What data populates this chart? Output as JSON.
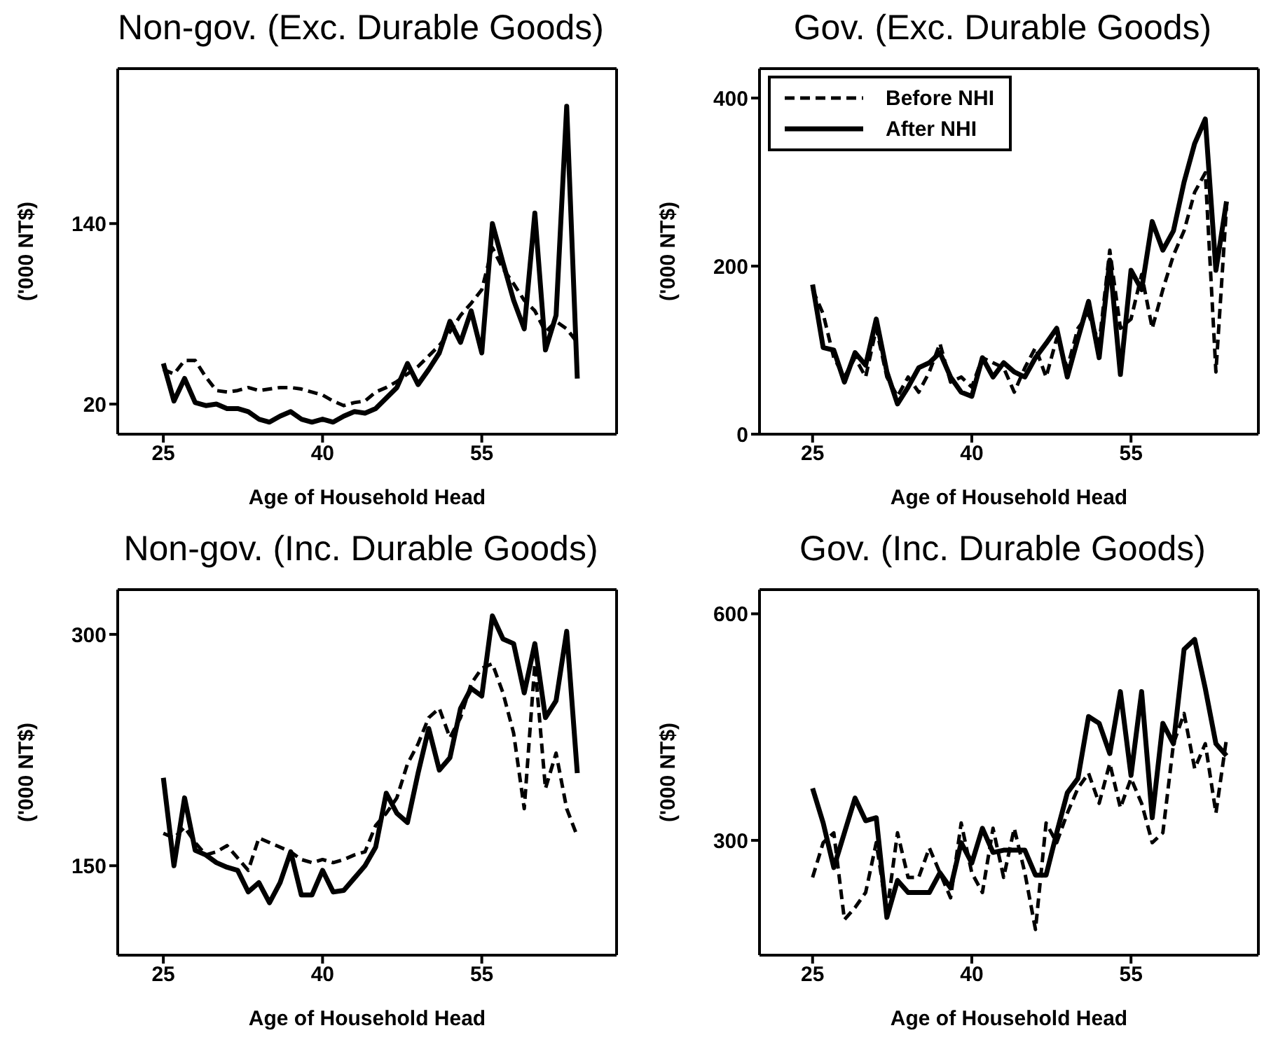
{
  "chart_data": [
    {
      "type": "line",
      "title": "Non-gov. (Exc. Durable Goods)",
      "xlabel": "Age of Household Head",
      "ylabel": "('000 NT$)",
      "x": [
        25,
        26,
        27,
        28,
        29,
        30,
        31,
        32,
        33,
        34,
        35,
        36,
        37,
        38,
        39,
        40,
        41,
        42,
        43,
        44,
        45,
        46,
        47,
        48,
        49,
        50,
        51,
        52,
        53,
        54,
        55,
        56,
        57,
        58,
        59,
        60,
        61,
        62,
        63,
        64
      ],
      "xlim": [
        20.7,
        67.7
      ],
      "xticks": [
        25,
        40,
        55
      ],
      "ylim": [
        0,
        243
      ],
      "yticks": [
        20,
        140
      ],
      "marker": "none",
      "legend": false,
      "series": [
        {
          "color": "#000000",
          "line_style": "dashed",
          "values": [
            43,
            40,
            49,
            49,
            38,
            29,
            28,
            29,
            31,
            29,
            30,
            31,
            31,
            30,
            28,
            26,
            22,
            19,
            21,
            22,
            28,
            31,
            35,
            40,
            45,
            52,
            59,
            68,
            79,
            87,
            96,
            124,
            110,
            100,
            89,
            82,
            68,
            75,
            70,
            61
          ]
        },
        {
          "color": "#000000",
          "line_style": "solid",
          "values": [
            47,
            22,
            37,
            21,
            19,
            20,
            17,
            17,
            15,
            10,
            8,
            12,
            15,
            10,
            8,
            10,
            8,
            12,
            15,
            14,
            17,
            24,
            31,
            47,
            33,
            43,
            54,
            75,
            61,
            82,
            54,
            140,
            114,
            89,
            70,
            147,
            56,
            79,
            218,
            37
          ]
        }
      ]
    },
    {
      "type": "line",
      "title": "Gov. (Exc. Durable Goods)",
      "xlabel": "Age of Household Head",
      "ylabel": "('000 NT$)",
      "x": [
        25,
        26,
        27,
        28,
        29,
        30,
        31,
        32,
        33,
        34,
        35,
        36,
        37,
        38,
        39,
        40,
        41,
        42,
        43,
        44,
        45,
        46,
        47,
        48,
        49,
        50,
        51,
        52,
        53,
        54,
        55,
        56,
        57,
        58,
        59,
        60,
        61,
        62,
        63,
        64
      ],
      "xlim": [
        20,
        67
      ],
      "xticks": [
        25,
        40,
        55
      ],
      "ylim": [
        0,
        435
      ],
      "yticks": [
        0,
        200,
        400
      ],
      "marker": "none",
      "legend": "top left",
      "series": [
        {
          "name": "Before NHI",
          "color": "#000000",
          "line_style": "dashed",
          "values": [
            172,
            143,
            91,
            68,
            91,
            68,
            126,
            68,
            45,
            68,
            50,
            74,
            108,
            62,
            68,
            56,
            91,
            85,
            79,
            50,
            79,
            103,
            68,
            114,
            79,
            126,
            143,
            108,
            219,
            126,
            137,
            190,
            126,
            172,
            213,
            242,
            288,
            311,
            74,
            271
          ]
        },
        {
          "name": "After NHI",
          "color": "#000000",
          "line_style": "solid",
          "values": [
            178,
            103,
            100,
            62,
            97,
            82,
            137,
            74,
            36,
            56,
            79,
            85,
            97,
            68,
            50,
            45,
            91,
            68,
            85,
            74,
            68,
            91,
            108,
            126,
            68,
            114,
            158,
            91,
            207,
            71,
            195,
            172,
            253,
            219,
            242,
            300,
            346,
            375,
            195,
            277
          ]
        }
      ]
    },
    {
      "type": "line",
      "title": "Non-gov. (Inc. Durable Goods)",
      "xlabel": "Age of Household Head",
      "ylabel": "('000 NT$)",
      "x": [
        25,
        26,
        27,
        28,
        29,
        30,
        31,
        32,
        33,
        34,
        35,
        36,
        37,
        38,
        39,
        40,
        41,
        42,
        43,
        44,
        45,
        46,
        47,
        48,
        49,
        50,
        51,
        52,
        53,
        54,
        55,
        56,
        57,
        58,
        59,
        60,
        61,
        62,
        63,
        64
      ],
      "xlim": [
        20.7,
        67.7
      ],
      "xticks": [
        25,
        40,
        55
      ],
      "ylim": [
        92,
        329
      ],
      "yticks": [
        150,
        300
      ],
      "marker": "none",
      "legend": false,
      "series": [
        {
          "color": "#000000",
          "line_style": "dashed",
          "values": [
            171,
            168,
            175,
            165,
            157,
            159,
            163,
            155,
            147,
            168,
            165,
            162,
            159,
            154,
            152,
            154,
            152,
            154,
            157,
            159,
            176,
            184,
            194,
            216,
            229,
            246,
            252,
            233,
            246,
            268,
            278,
            281,
            262,
            236,
            187,
            281,
            200,
            223,
            187,
            169
          ]
        },
        {
          "color": "#000000",
          "line_style": "solid",
          "values": [
            207,
            150,
            194,
            160,
            157,
            152,
            149,
            147,
            133,
            139,
            126,
            139,
            159,
            131,
            131,
            147,
            133,
            134,
            142,
            150,
            162,
            197,
            184,
            178,
            210,
            239,
            212,
            220,
            252,
            265,
            260,
            312,
            297,
            294,
            262,
            294,
            246,
            257,
            302,
            210
          ]
        }
      ]
    },
    {
      "type": "line",
      "title": "Gov. (Inc. Durable Goods)",
      "xlabel": "Age of Household Head",
      "ylabel": "('000 NT$)",
      "x": [
        25,
        26,
        27,
        28,
        29,
        30,
        31,
        32,
        33,
        34,
        35,
        36,
        37,
        38,
        39,
        40,
        41,
        42,
        43,
        44,
        45,
        46,
        47,
        48,
        49,
        50,
        51,
        52,
        53,
        54,
        55,
        56,
        57,
        58,
        59,
        60,
        61,
        62,
        63,
        64
      ],
      "xlim": [
        20,
        67
      ],
      "xticks": [
        25,
        40,
        55
      ],
      "ylim": [
        148,
        632
      ],
      "yticks": [
        300,
        600
      ],
      "marker": "none",
      "legend": false,
      "series": [
        {
          "color": "#000000",
          "line_style": "dashed",
          "values": [
            251,
            297,
            310,
            195,
            211,
            231,
            297,
            205,
            310,
            251,
            251,
            290,
            257,
            224,
            323,
            257,
            231,
            316,
            251,
            316,
            257,
            182,
            323,
            297,
            336,
            369,
            389,
            349,
            402,
            343,
            382,
            349,
            297,
            310,
            428,
            468,
            395,
            428,
            336,
            435
          ]
        },
        {
          "color": "#000000",
          "line_style": "solid",
          "values": [
            369,
            323,
            264,
            310,
            356,
            326,
            330,
            198,
            247,
            231,
            231,
            231,
            257,
            237,
            297,
            270,
            316,
            284,
            287,
            287,
            287,
            254,
            254,
            310,
            363,
            382,
            464,
            455,
            415,
            497,
            386,
            497,
            330,
            455,
            428,
            553,
            566,
            501,
            428,
            412
          ]
        }
      ]
    }
  ]
}
